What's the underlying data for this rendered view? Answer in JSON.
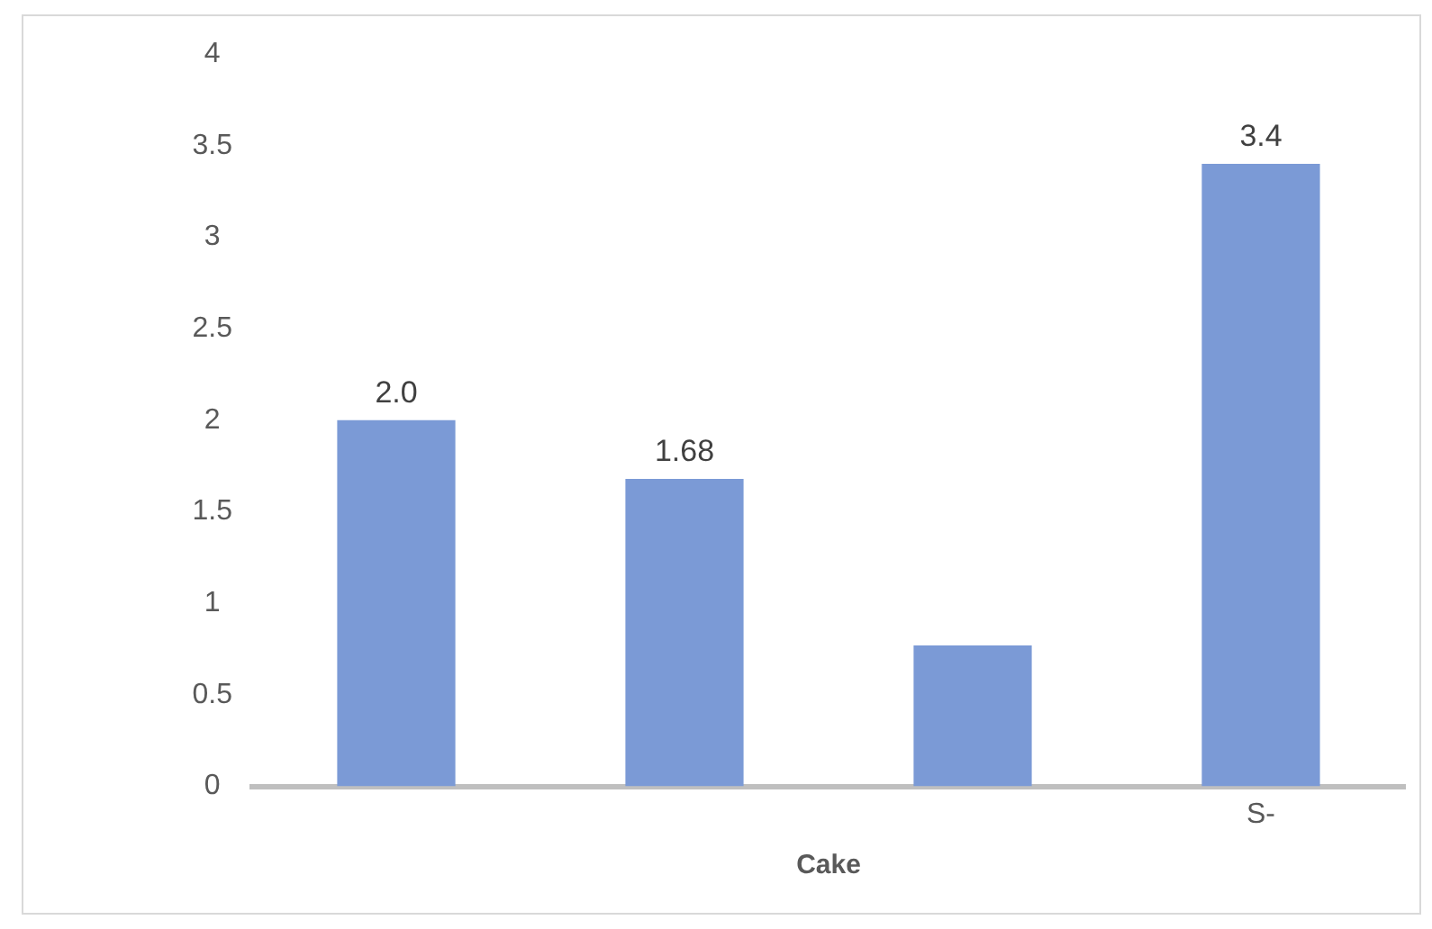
{
  "chart_data": {
    "type": "bar",
    "xlabel": "Cake",
    "categories": [
      null,
      null,
      null,
      "S-"
    ],
    "values": [
      2.0,
      1.68,
      0.77,
      3.4
    ],
    "value_labels": [
      "2.0",
      "1.68",
      null,
      "3.4"
    ],
    "color": "#7b9ad6",
    "ylim": [
      0,
      4
    ],
    "yticks": [
      0,
      0.5,
      1,
      1.5,
      2,
      2.5,
      3,
      3.5,
      4
    ]
  }
}
